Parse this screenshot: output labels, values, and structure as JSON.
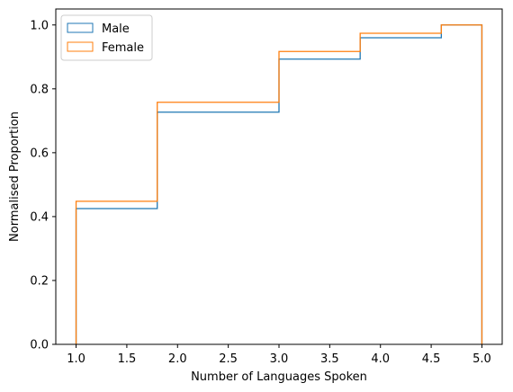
{
  "chart_data": {
    "type": "step",
    "xlabel": "Number of Languages Spoken",
    "ylabel": "Normalised Proportion",
    "xlim": [
      0.8,
      5.2
    ],
    "ylim": [
      0.0,
      1.05
    ],
    "xticks": [
      "1.0",
      "1.5",
      "2.0",
      "2.5",
      "3.0",
      "3.5",
      "4.0",
      "4.5",
      "5.0"
    ],
    "yticks": [
      "0.0",
      "0.2",
      "0.4",
      "0.6",
      "0.8",
      "1.0"
    ],
    "bin_edges": [
      1.0,
      1.8,
      3.0,
      3.8,
      4.6,
      5.0
    ],
    "series": [
      {
        "name": "Male",
        "color": "#1f77b4",
        "values": [
          0.425,
          0.727,
          0.893,
          0.96,
          1.0
        ]
      },
      {
        "name": "Female",
        "color": "#ff7f0e",
        "values": [
          0.448,
          0.758,
          0.917,
          0.974,
          1.0
        ]
      }
    ],
    "legend": {
      "position": "upper-left"
    },
    "grid": false
  }
}
